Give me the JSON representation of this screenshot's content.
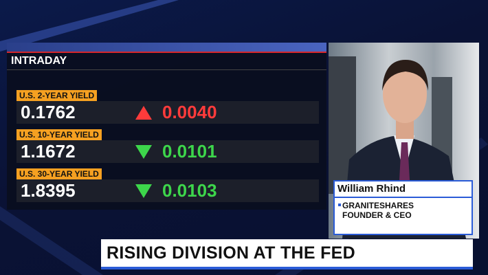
{
  "panel": {
    "title": "INTRADAY",
    "rows": [
      {
        "label": "U.S. 2-YEAR YIELD",
        "value": "0.1762",
        "direction": "up",
        "change": "0.0040"
      },
      {
        "label": "U.S. 10-YEAR YIELD",
        "value": "1.1672",
        "direction": "down",
        "change": "0.0101"
      },
      {
        "label": "U.S. 30-YEAR YIELD",
        "value": "1.8395",
        "direction": "down",
        "change": "0.0103"
      }
    ]
  },
  "guest": {
    "name": "William Rhind",
    "company": "GRANITESHARES",
    "role": "FOUNDER & CEO"
  },
  "headline": "RISING DIVISION AT THE FED"
}
